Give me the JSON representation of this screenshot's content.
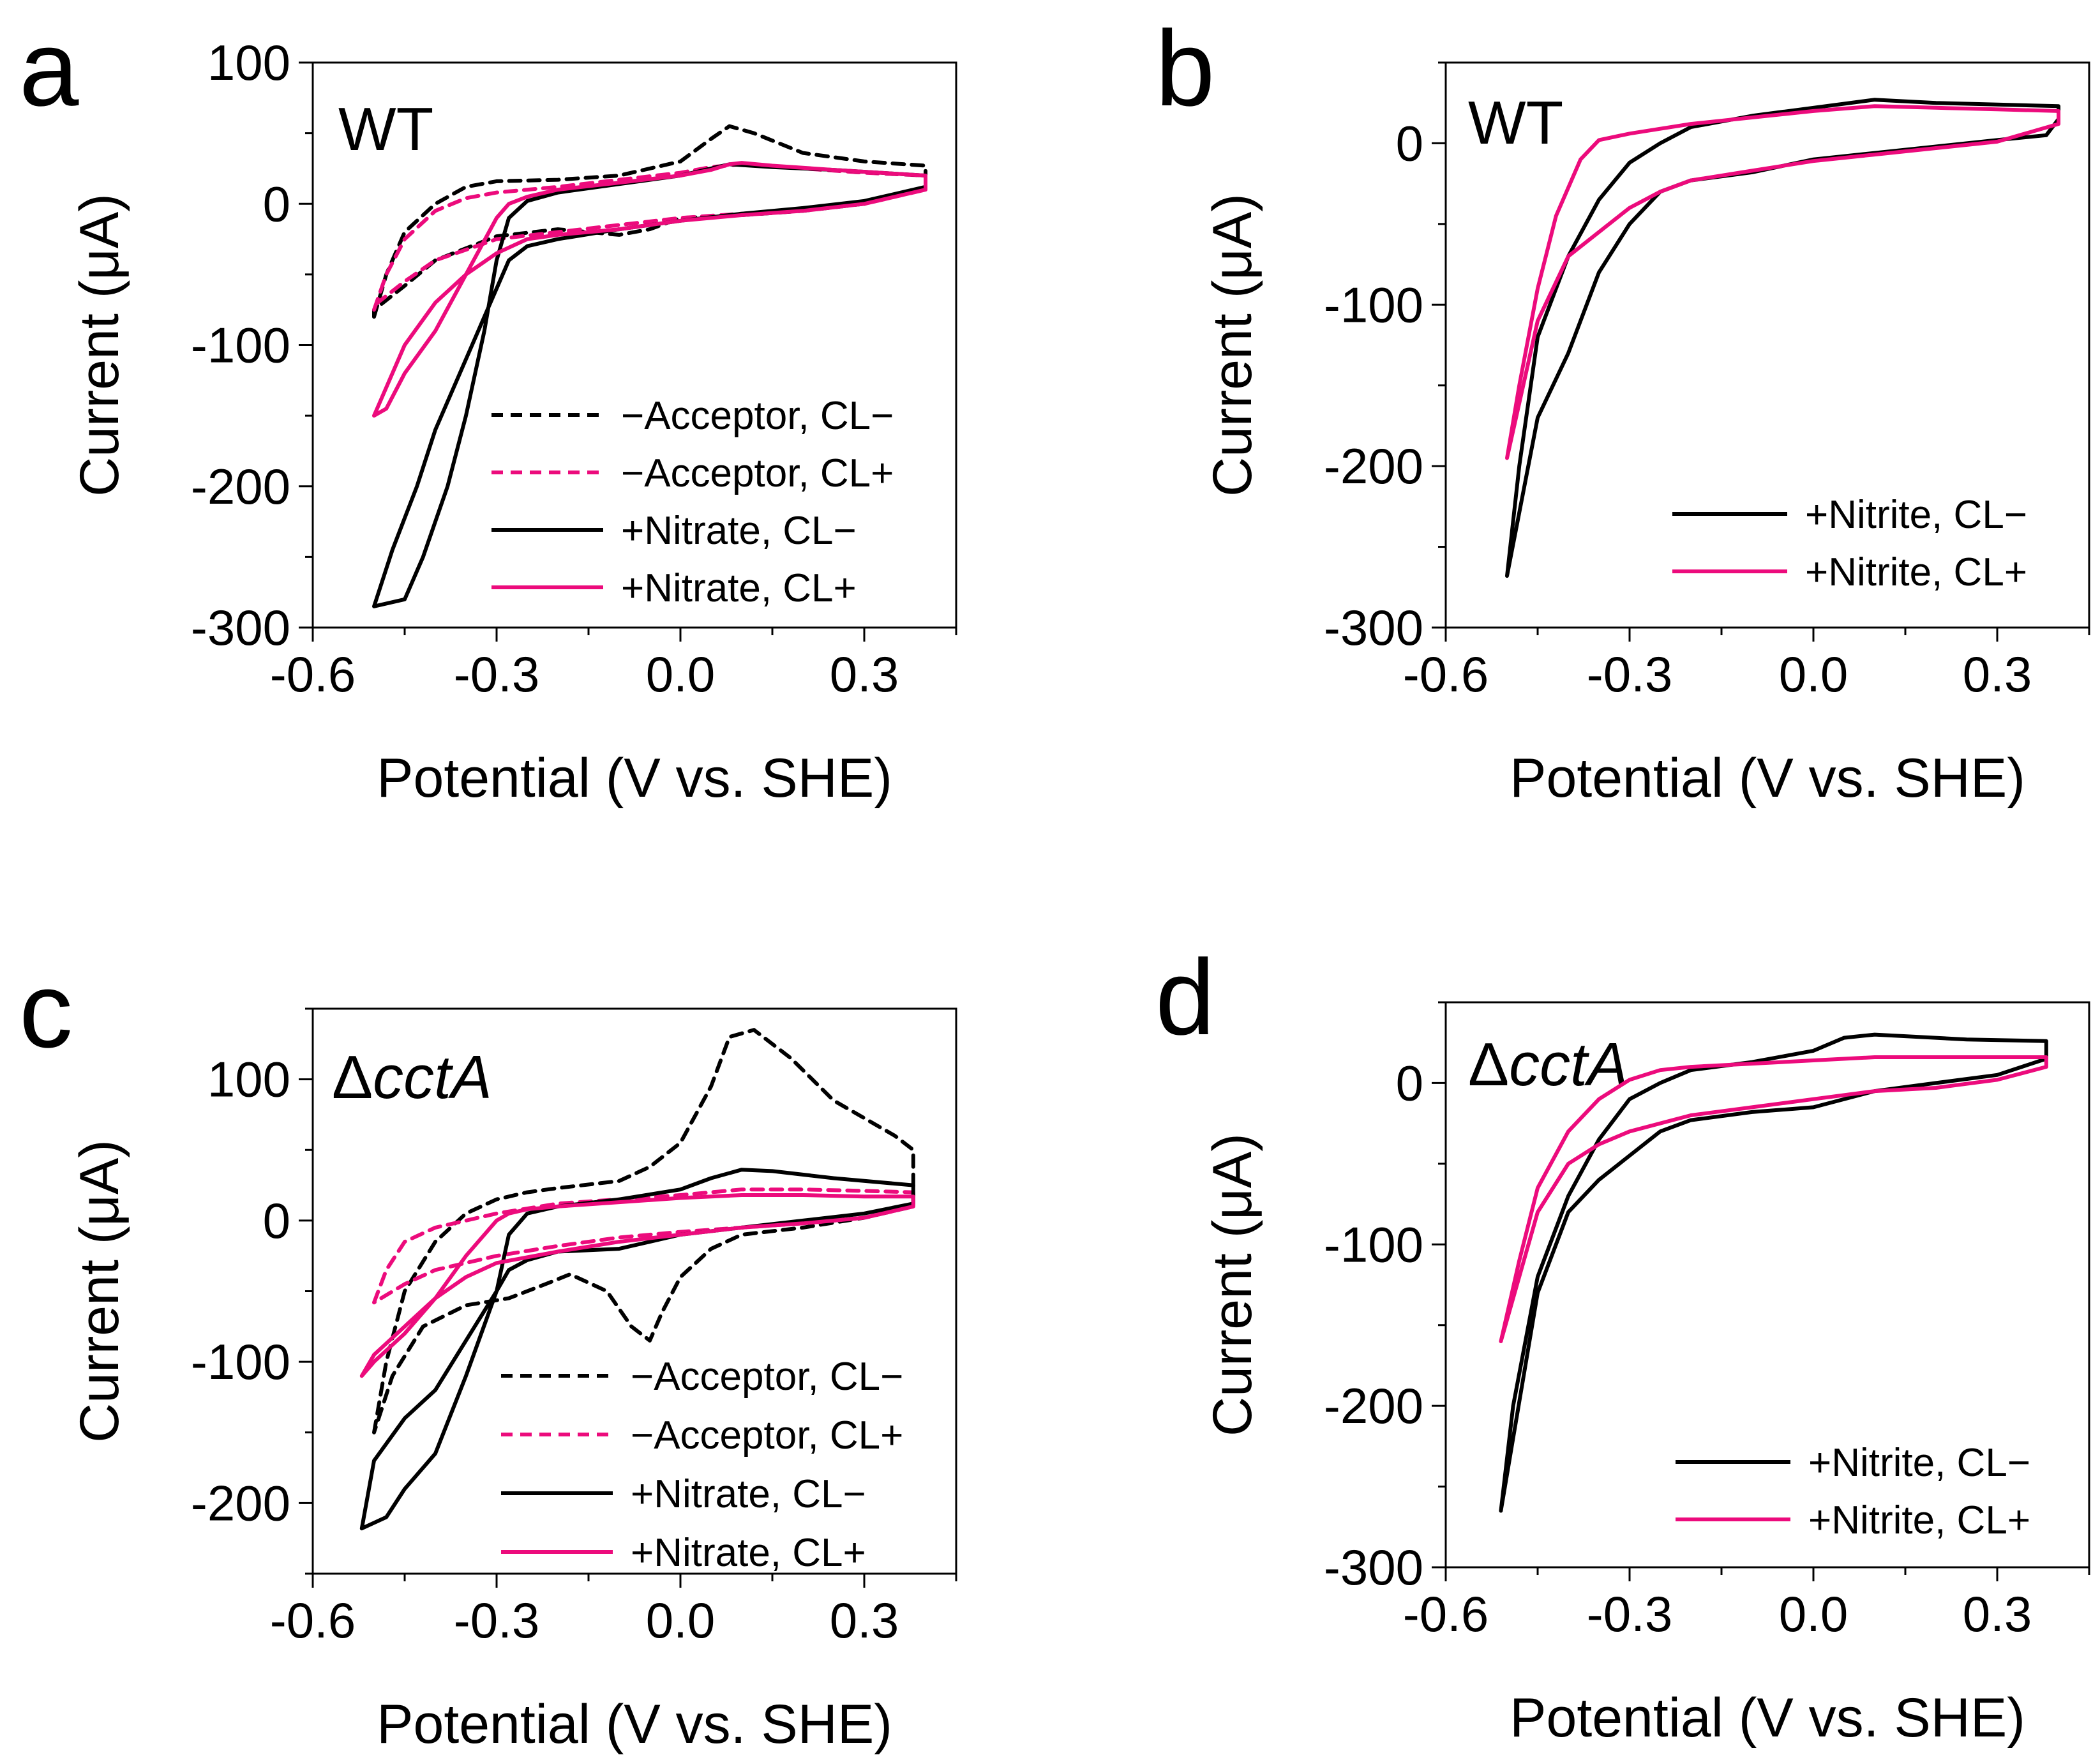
{
  "colors": {
    "black": "#000000",
    "pink": "#ec0b7c"
  },
  "chart_data": [
    {
      "panel": "a",
      "type": "line",
      "title": "",
      "annotation": "WT",
      "annotation_italic_part": "",
      "xlabel": "Potential (V vs. SHE)",
      "ylabel": "Current (μA)",
      "xlim": [
        -0.6,
        0.45
      ],
      "ylim": [
        -300,
        100
      ],
      "xticks": [
        -0.6,
        -0.3,
        0.0,
        0.3
      ],
      "xtick_labels": [
        "-0.6",
        "-0.3",
        "0.0",
        "0.3"
      ],
      "yticks": [
        100,
        0,
        -100,
        -200,
        -300
      ],
      "ytick_labels": [
        "100",
        "0",
        "-100",
        "-200",
        "-300"
      ],
      "legend_position": "bottom-right",
      "series": [
        {
          "name": "−Acceptor, CL−",
          "color": "#000000",
          "dash": true,
          "x": [
            -0.5,
            -0.48,
            -0.45,
            -0.4,
            -0.35,
            -0.3,
            -0.2,
            -0.1,
            0.0,
            0.05,
            0.08,
            0.12,
            0.2,
            0.3,
            0.4,
            0.4,
            0.3,
            0.2,
            0.1,
            0.0,
            -0.05,
            -0.1,
            -0.2,
            -0.3,
            -0.4,
            -0.45,
            -0.5,
            -0.5
          ],
          "y": [
            -80,
            -50,
            -20,
            0,
            12,
            16,
            17,
            20,
            30,
            46,
            55,
            50,
            36,
            30,
            27,
            12,
            0,
            -5,
            -8,
            -10,
            -18,
            -22,
            -18,
            -23,
            -40,
            -58,
            -75,
            -80
          ]
        },
        {
          "name": "−Acceptor, CL+",
          "color": "#ec0b7c",
          "dash": true,
          "x": [
            -0.5,
            -0.48,
            -0.45,
            -0.4,
            -0.35,
            -0.3,
            -0.2,
            -0.1,
            0.0,
            0.05,
            0.1,
            0.2,
            0.3,
            0.4,
            0.4,
            0.3,
            0.2,
            0.1,
            0.0,
            -0.1,
            -0.2,
            -0.3,
            -0.4,
            -0.45,
            -0.5,
            -0.5
          ],
          "y": [
            -75,
            -50,
            -25,
            -5,
            4,
            8,
            12,
            17,
            22,
            26,
            28,
            25,
            22,
            20,
            10,
            0,
            -4,
            -7,
            -10,
            -15,
            -20,
            -25,
            -40,
            -55,
            -72,
            -75
          ]
        },
        {
          "name": "+Nitrate, CL−",
          "color": "#000000",
          "dash": false,
          "x": [
            -0.5,
            -0.45,
            -0.42,
            -0.38,
            -0.35,
            -0.32,
            -0.3,
            -0.28,
            -0.25,
            -0.2,
            -0.1,
            0.0,
            0.05,
            0.08,
            0.15,
            0.25,
            0.4,
            0.4,
            0.3,
            0.2,
            0.1,
            0.0,
            -0.1,
            -0.2,
            -0.25,
            -0.28,
            -0.3,
            -0.33,
            -0.36,
            -0.4,
            -0.43,
            -0.47,
            -0.5
          ],
          "y": [
            -285,
            -280,
            -250,
            -200,
            -150,
            -90,
            -40,
            -10,
            2,
            8,
            14,
            20,
            25,
            28,
            26,
            24,
            20,
            12,
            2,
            -3,
            -7,
            -12,
            -18,
            -25,
            -30,
            -40,
            -60,
            -90,
            -120,
            -160,
            -200,
            -245,
            -285
          ]
        },
        {
          "name": "+Nitrate, CL+",
          "color": "#ec0b7c",
          "dash": false,
          "x": [
            -0.5,
            -0.48,
            -0.45,
            -0.4,
            -0.35,
            -0.3,
            -0.28,
            -0.25,
            -0.2,
            -0.1,
            0.0,
            0.05,
            0.08,
            0.1,
            0.15,
            0.25,
            0.4,
            0.4,
            0.3,
            0.2,
            0.1,
            0.0,
            -0.1,
            -0.2,
            -0.25,
            -0.3,
            -0.35,
            -0.4,
            -0.45,
            -0.5
          ],
          "y": [
            -150,
            -145,
            -120,
            -90,
            -50,
            -10,
            0,
            5,
            10,
            15,
            20,
            24,
            28,
            29,
            27,
            24,
            20,
            10,
            0,
            -5,
            -8,
            -12,
            -18,
            -22,
            -25,
            -35,
            -50,
            -70,
            -100,
            -150
          ]
        }
      ]
    },
    {
      "panel": "b",
      "type": "line",
      "title": "",
      "annotation": "WT",
      "annotation_italic_part": "",
      "xlabel": "Potential (V vs. SHE)",
      "ylabel": "Current (μA)",
      "xlim": [
        -0.6,
        0.45
      ],
      "ylim": [
        -300,
        50
      ],
      "xticks": [
        -0.6,
        -0.3,
        0.0,
        0.3
      ],
      "xtick_labels": [
        "-0.6",
        "-0.3",
        "0.0",
        "0.3"
      ],
      "yticks": [
        0,
        -100,
        -200,
        -300
      ],
      "ytick_labels": [
        "0",
        "-100",
        "-200",
        "-300"
      ],
      "legend_position": "bottom-right",
      "series": [
        {
          "name": "+Nitrite, CL−",
          "color": "#000000",
          "dash": false,
          "x": [
            -0.5,
            -0.48,
            -0.45,
            -0.4,
            -0.35,
            -0.3,
            -0.25,
            -0.2,
            -0.1,
            0.0,
            0.1,
            0.2,
            0.3,
            0.4,
            0.4,
            0.38,
            0.3,
            0.2,
            0.1,
            0.0,
            -0.1,
            -0.2,
            -0.25,
            -0.3,
            -0.35,
            -0.4,
            -0.45,
            -0.5
          ],
          "y": [
            -268,
            -200,
            -120,
            -70,
            -35,
            -12,
            0,
            10,
            17,
            22,
            27,
            25,
            24,
            23,
            15,
            5,
            2,
            -2,
            -6,
            -10,
            -18,
            -23,
            -30,
            -50,
            -80,
            -130,
            -170,
            -268
          ]
        },
        {
          "name": "+Nitrite, CL+",
          "color": "#ec0b7c",
          "dash": false,
          "x": [
            -0.5,
            -0.48,
            -0.45,
            -0.42,
            -0.38,
            -0.35,
            -0.3,
            -0.25,
            -0.2,
            -0.1,
            0.0,
            0.1,
            0.2,
            0.3,
            0.4,
            0.4,
            0.3,
            0.2,
            0.1,
            0.0,
            -0.1,
            -0.2,
            -0.25,
            -0.3,
            -0.35,
            -0.4,
            -0.45,
            -0.5
          ],
          "y": [
            -195,
            -150,
            -90,
            -45,
            -10,
            2,
            6,
            9,
            12,
            16,
            20,
            23,
            22,
            21,
            20,
            12,
            1,
            -3,
            -7,
            -11,
            -17,
            -23,
            -30,
            -40,
            -55,
            -70,
            -110,
            -195
          ]
        }
      ]
    },
    {
      "panel": "c",
      "type": "line",
      "title": "",
      "annotation": "ΔcctA",
      "annotation_italic_part": "cctA",
      "xlabel": "Potential (V vs. SHE)",
      "ylabel": "Current (μA)",
      "xlim": [
        -0.6,
        0.45
      ],
      "ylim": [
        -250,
        150
      ],
      "xticks": [
        -0.6,
        -0.3,
        0.0,
        0.3
      ],
      "xtick_labels": [
        "-0.6",
        "-0.3",
        "0.0",
        "0.3"
      ],
      "yticks": [
        100,
        0,
        -100,
        -200
      ],
      "ytick_labels": [
        "100",
        "0",
        "-100",
        "-200"
      ],
      "legend_position": "bottom-right",
      "series": [
        {
          "name": "−Acceptor, CL−",
          "color": "#000000",
          "dash": true,
          "x": [
            -0.5,
            -0.48,
            -0.45,
            -0.4,
            -0.35,
            -0.3,
            -0.25,
            -0.2,
            -0.1,
            -0.05,
            0.0,
            0.05,
            0.08,
            0.12,
            0.18,
            0.25,
            0.35,
            0.38,
            0.38,
            0.3,
            0.2,
            0.1,
            0.05,
            0.0,
            -0.03,
            -0.05,
            -0.08,
            -0.12,
            -0.18,
            -0.22,
            -0.28,
            -0.35,
            -0.42,
            -0.47,
            -0.5
          ],
          "y": [
            -150,
            -100,
            -50,
            -15,
            5,
            15,
            20,
            23,
            28,
            38,
            55,
            95,
            130,
            135,
            115,
            85,
            60,
            50,
            10,
            2,
            -5,
            -10,
            -20,
            -40,
            -65,
            -85,
            -75,
            -50,
            -38,
            -45,
            -55,
            -60,
            -75,
            -110,
            -150
          ]
        },
        {
          "name": "−Acceptor, CL+",
          "color": "#ec0b7c",
          "dash": true,
          "x": [
            -0.5,
            -0.48,
            -0.45,
            -0.4,
            -0.35,
            -0.3,
            -0.2,
            -0.1,
            0.0,
            0.1,
            0.2,
            0.3,
            0.38,
            0.38,
            0.3,
            0.2,
            0.1,
            0.0,
            -0.1,
            -0.2,
            -0.3,
            -0.4,
            -0.45,
            -0.5
          ],
          "y": [
            -58,
            -35,
            -15,
            -5,
            0,
            5,
            12,
            15,
            18,
            22,
            22,
            21,
            20,
            10,
            2,
            -2,
            -5,
            -8,
            -12,
            -18,
            -25,
            -35,
            -45,
            -58
          ]
        },
        {
          "name": "+Nitrate, CL−",
          "color": "#000000",
          "dash": false,
          "x": [
            -0.52,
            -0.48,
            -0.45,
            -0.4,
            -0.35,
            -0.3,
            -0.28,
            -0.25,
            -0.2,
            -0.1,
            0.0,
            0.05,
            0.1,
            0.15,
            0.25,
            0.38,
            0.38,
            0.3,
            0.2,
            0.1,
            0.0,
            -0.05,
            -0.1,
            -0.2,
            -0.25,
            -0.28,
            -0.3,
            -0.35,
            -0.4,
            -0.45,
            -0.5,
            -0.52
          ],
          "y": [
            -218,
            -210,
            -190,
            -165,
            -110,
            -50,
            -10,
            5,
            10,
            15,
            22,
            30,
            36,
            35,
            30,
            25,
            12,
            5,
            0,
            -5,
            -10,
            -15,
            -20,
            -22,
            -28,
            -35,
            -50,
            -85,
            -120,
            -140,
            -170,
            -218
          ]
        },
        {
          "name": "+Nitrate, CL+",
          "color": "#ec0b7c",
          "dash": false,
          "x": [
            -0.52,
            -0.5,
            -0.45,
            -0.4,
            -0.35,
            -0.3,
            -0.28,
            -0.25,
            -0.2,
            -0.1,
            0.0,
            0.1,
            0.2,
            0.3,
            0.38,
            0.38,
            0.3,
            0.2,
            0.1,
            0.0,
            -0.1,
            -0.2,
            -0.3,
            -0.35,
            -0.4,
            -0.45,
            -0.5,
            -0.52
          ],
          "y": [
            -110,
            -100,
            -80,
            -55,
            -25,
            0,
            5,
            8,
            10,
            13,
            16,
            18,
            18,
            17,
            17,
            10,
            2,
            -2,
            -5,
            -10,
            -15,
            -22,
            -30,
            -40,
            -55,
            -75,
            -95,
            -110
          ]
        }
      ]
    },
    {
      "panel": "d",
      "type": "line",
      "title": "",
      "annotation": "ΔcctA",
      "annotation_italic_part": "cctA",
      "xlabel": "Potential (V vs. SHE)",
      "ylabel": "Current (μA)",
      "xlim": [
        -0.6,
        0.45
      ],
      "ylim": [
        -300,
        50
      ],
      "xticks": [
        -0.6,
        -0.3,
        0.0,
        0.3
      ],
      "xtick_labels": [
        "-0.6",
        "-0.3",
        "0.0",
        "0.3"
      ],
      "yticks": [
        0,
        -100,
        -200,
        -300
      ],
      "ytick_labels": [
        "0",
        "-100",
        "-200",
        "-300"
      ],
      "legend_position": "bottom-right",
      "series": [
        {
          "name": "+Nitrite, CL−",
          "color": "#000000",
          "dash": false,
          "x": [
            -0.51,
            -0.49,
            -0.45,
            -0.4,
            -0.35,
            -0.3,
            -0.25,
            -0.2,
            -0.1,
            0.0,
            0.05,
            0.1,
            0.15,
            0.25,
            0.38,
            0.38,
            0.3,
            0.2,
            0.1,
            0.0,
            -0.1,
            -0.2,
            -0.25,
            -0.3,
            -0.35,
            -0.4,
            -0.45,
            -0.51
          ],
          "y": [
            -265,
            -200,
            -120,
            -70,
            -35,
            -10,
            0,
            8,
            13,
            20,
            28,
            30,
            29,
            27,
            26,
            15,
            5,
            0,
            -5,
            -15,
            -18,
            -23,
            -30,
            -45,
            -60,
            -80,
            -130,
            -265
          ]
        },
        {
          "name": "+Nitrite, CL+",
          "color": "#ec0b7c",
          "dash": false,
          "x": [
            -0.51,
            -0.48,
            -0.45,
            -0.4,
            -0.35,
            -0.3,
            -0.25,
            -0.2,
            -0.1,
            0.0,
            0.1,
            0.2,
            0.3,
            0.38,
            0.38,
            0.3,
            0.2,
            0.1,
            0.0,
            -0.1,
            -0.2,
            -0.3,
            -0.35,
            -0.4,
            -0.45,
            -0.51
          ],
          "y": [
            -160,
            -110,
            -65,
            -30,
            -10,
            2,
            8,
            10,
            12,
            14,
            16,
            16,
            16,
            16,
            10,
            2,
            -3,
            -5,
            -10,
            -15,
            -20,
            -30,
            -38,
            -50,
            -80,
            -160
          ]
        }
      ]
    }
  ]
}
